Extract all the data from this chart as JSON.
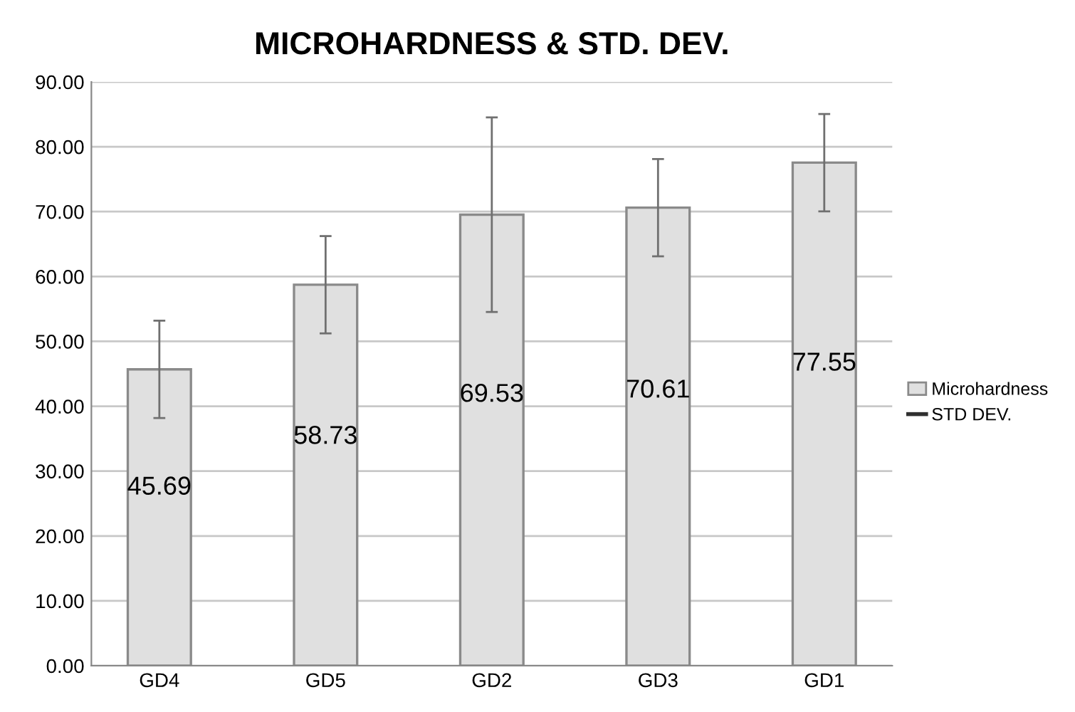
{
  "chart_data": {
    "type": "bar",
    "title": "MICROHARDNESS & STD. DEV.",
    "categories": [
      "GD4",
      "GD5",
      "GD2",
      "GD3",
      "GD1"
    ],
    "series": [
      {
        "name": "Microhardness",
        "color": "#e0e0e0",
        "values": [
          45.69,
          58.73,
          69.53,
          70.61,
          77.55
        ],
        "errors": [
          7.5,
          7.5,
          15,
          7.5,
          7.5
        ]
      }
    ],
    "annotations": [
      "STD DEV."
    ],
    "data_labels": true,
    "ylim": [
      0,
      90
    ],
    "yticks": [
      {
        "value": 0,
        "label": "0.00"
      },
      {
        "value": 10,
        "label": "10.00"
      },
      {
        "value": 20,
        "label": "20.00"
      },
      {
        "value": 30,
        "label": "30.00"
      },
      {
        "value": 40,
        "label": "40.00"
      },
      {
        "value": 50,
        "label": "50.00"
      },
      {
        "value": 60,
        "label": "60.00"
      },
      {
        "value": 70,
        "label": "70.00"
      },
      {
        "value": 80,
        "label": "80.00"
      },
      {
        "value": 90,
        "label": "90.00"
      }
    ],
    "grid": "y",
    "legend": "right"
  }
}
